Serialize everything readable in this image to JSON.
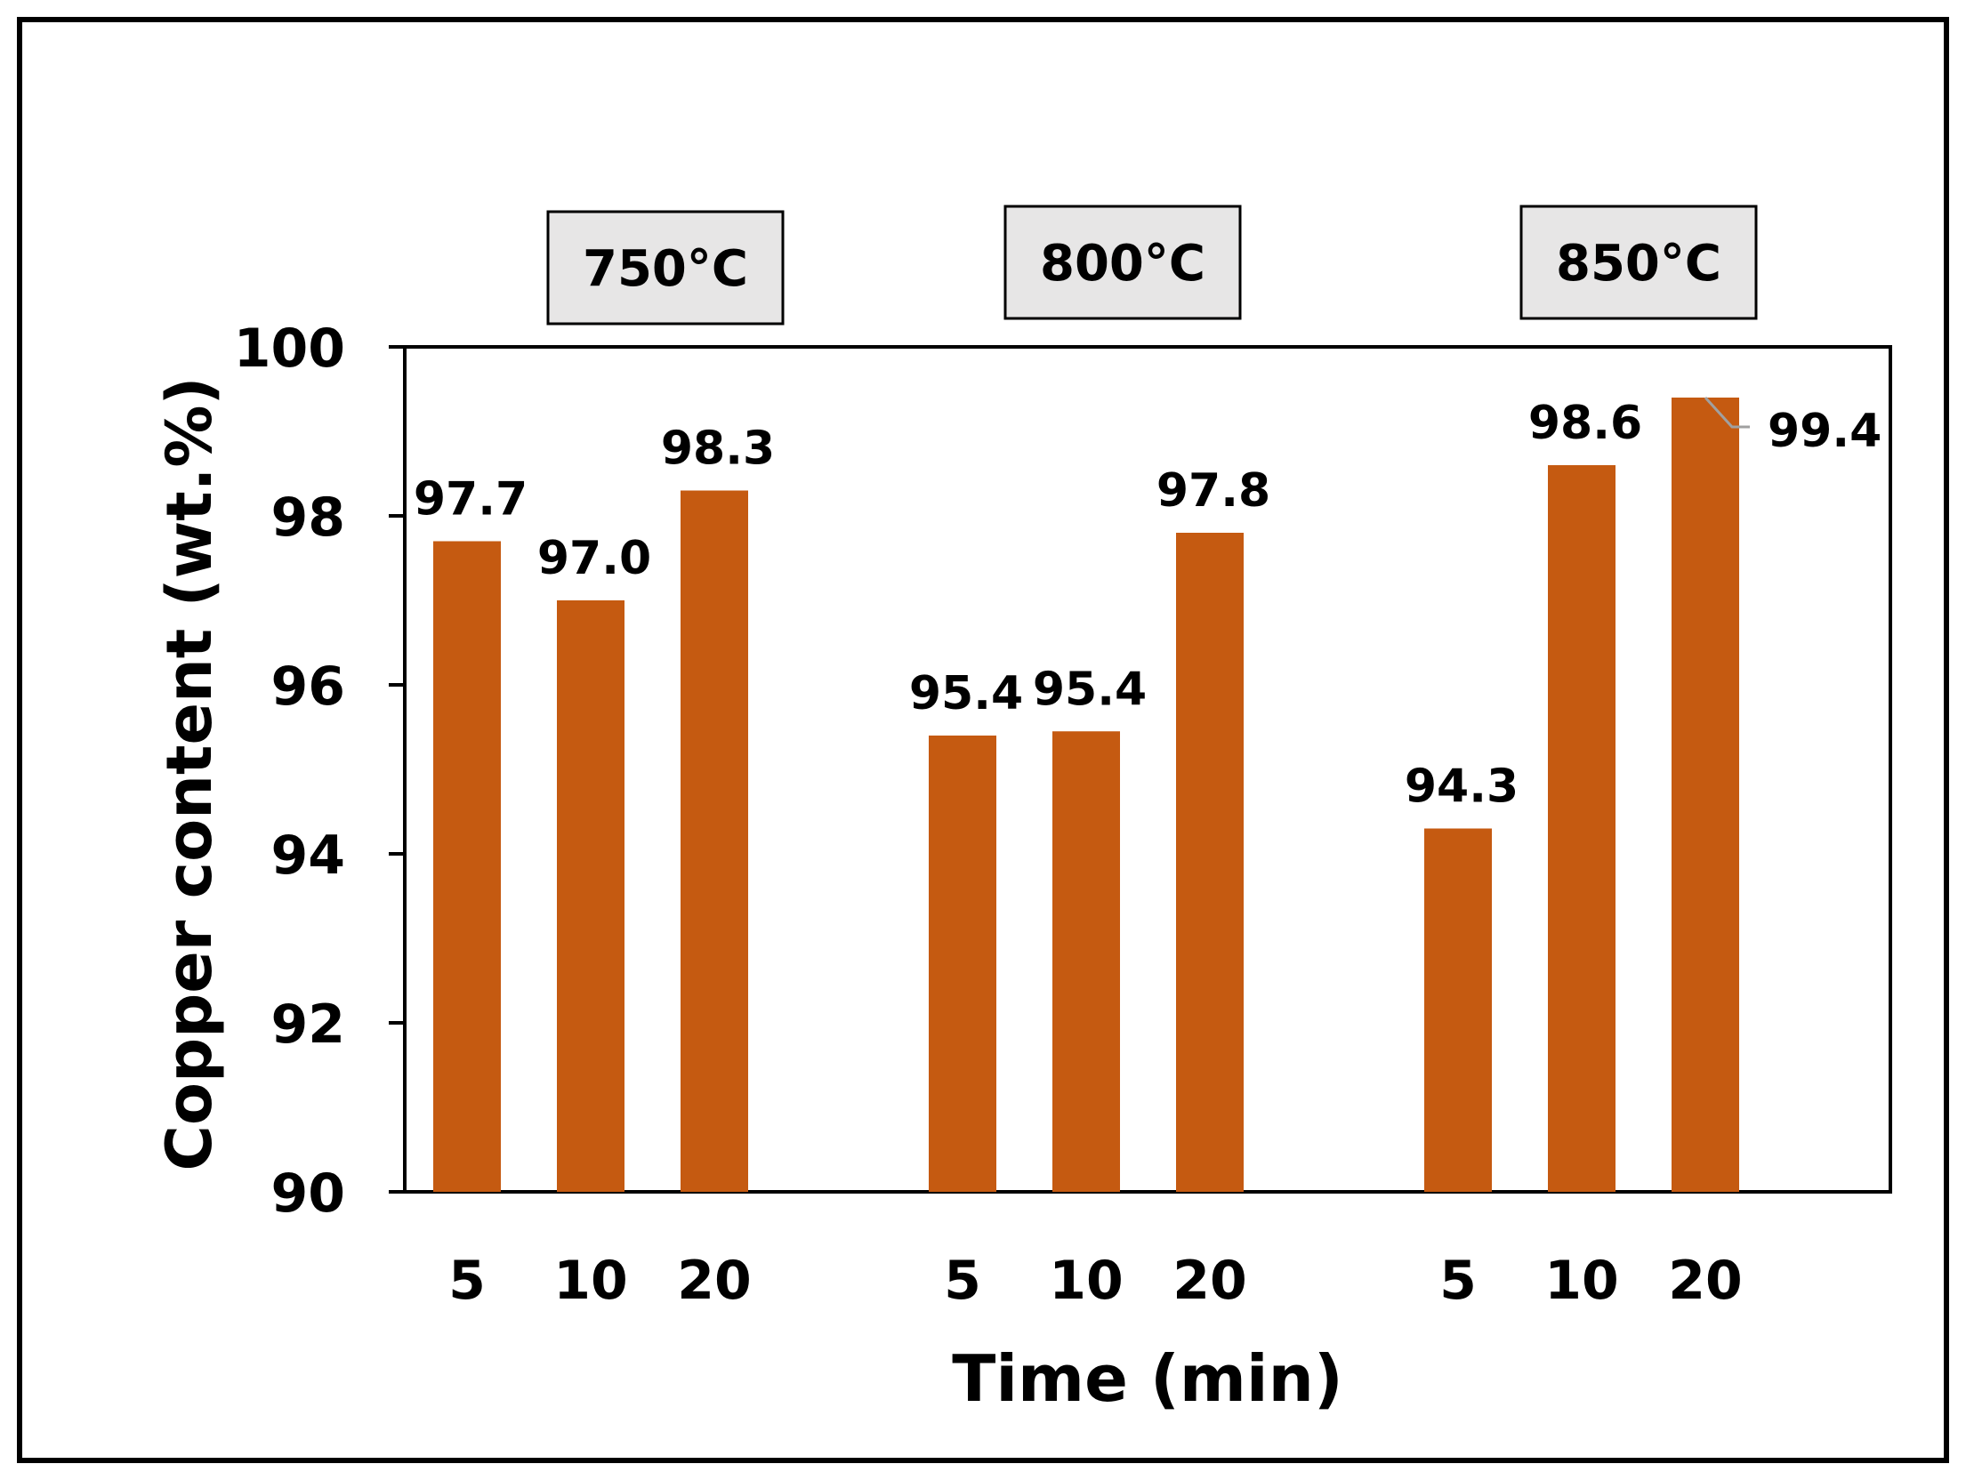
{
  "chart_data": {
    "type": "bar",
    "title": "",
    "xlabel": "Time (min)",
    "ylabel": "Copper content (wt.%)",
    "ylim": [
      90,
      100
    ],
    "yticks": [
      90,
      92,
      94,
      96,
      98,
      100
    ],
    "grid": false,
    "legend": "none",
    "groups": [
      {
        "label": "750°C",
        "categories": [
          "5",
          "10",
          "20"
        ],
        "values": [
          97.7,
          97.0,
          98.3
        ],
        "data_labels": [
          "97.7",
          "97.0",
          "98.3"
        ]
      },
      {
        "label": "800°C",
        "categories": [
          "5",
          "10",
          "20"
        ],
        "values": [
          95.4,
          95.45,
          97.8
        ],
        "data_labels": [
          "95.4",
          "95.4",
          "97.8"
        ]
      },
      {
        "label": "850°C",
        "categories": [
          "5",
          "10",
          "20"
        ],
        "values": [
          94.3,
          98.6,
          99.4
        ],
        "data_labels": [
          "94.3",
          "98.6",
          "99.4"
        ]
      }
    ]
  },
  "colors": {
    "bar": "#c55a11",
    "group_box": "#e7e6e6",
    "axis": "#000000",
    "leader_line": "#a0a0a0"
  }
}
